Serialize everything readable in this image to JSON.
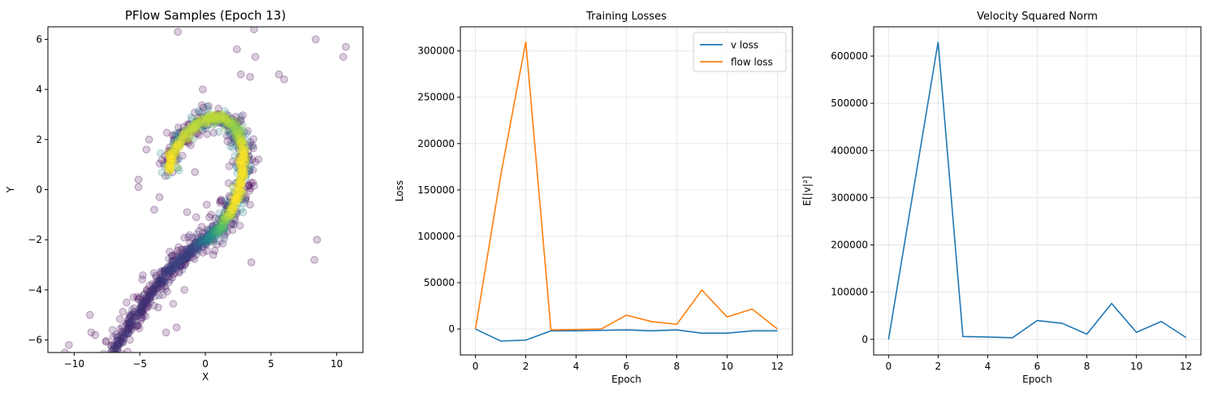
{
  "chart_data": [
    {
      "type": "scatter",
      "title": "PFlow Samples (Epoch 13)",
      "xlabel": "X",
      "ylabel": "Y",
      "xlim": [
        -12,
        12
      ],
      "ylim": [
        -6.5,
        6.5
      ],
      "xticks": [
        -10,
        -5,
        0,
        5,
        10
      ],
      "yticks": [
        -6,
        -4,
        -2,
        0,
        2,
        4,
        6
      ],
      "grid": false,
      "colormap": [
        "#440154",
        "#3b528b",
        "#21918c",
        "#5ec962",
        "#fde725"
      ],
      "point_alpha": 0.2,
      "curve_points": [
        {
          "x": -7.0,
          "y": -6.5,
          "c": 0.15
        },
        {
          "x": -6.2,
          "y": -5.8,
          "c": 0.15
        },
        {
          "x": -5.3,
          "y": -5.0,
          "c": 0.15
        },
        {
          "x": -4.4,
          "y": -4.3,
          "c": 0.15
        },
        {
          "x": -3.5,
          "y": -3.7,
          "c": 0.15
        },
        {
          "x": -2.6,
          "y": -3.1,
          "c": 0.2
        },
        {
          "x": -1.8,
          "y": -2.8,
          "c": 0.2
        },
        {
          "x": -1.0,
          "y": -2.4,
          "c": 0.2
        },
        {
          "x": -0.3,
          "y": -2.1,
          "c": 0.3
        },
        {
          "x": 0.5,
          "y": -1.8,
          "c": 0.5
        },
        {
          "x": 1.2,
          "y": -1.5,
          "c": 0.7
        },
        {
          "x": 1.8,
          "y": -1.0,
          "c": 0.9
        },
        {
          "x": 2.3,
          "y": -0.5,
          "c": 1.0
        },
        {
          "x": 2.6,
          "y": 0.1,
          "c": 1.0
        },
        {
          "x": 2.8,
          "y": 0.8,
          "c": 1.0
        },
        {
          "x": 2.9,
          "y": 1.4,
          "c": 1.0
        },
        {
          "x": 2.7,
          "y": 2.0,
          "c": 0.9
        },
        {
          "x": 2.3,
          "y": 2.5,
          "c": 0.8
        },
        {
          "x": 1.5,
          "y": 2.8,
          "c": 0.9
        },
        {
          "x": 0.6,
          "y": 2.9,
          "c": 0.9
        },
        {
          "x": -0.3,
          "y": 2.7,
          "c": 0.9
        },
        {
          "x": -1.2,
          "y": 2.4,
          "c": 0.9
        },
        {
          "x": -2.0,
          "y": 1.9,
          "c": 0.95
        },
        {
          "x": -2.6,
          "y": 1.3,
          "c": 1.0
        },
        {
          "x": -2.8,
          "y": 0.7,
          "c": 1.0
        }
      ],
      "outliers": [
        {
          "x": -2.1,
          "y": 6.3
        },
        {
          "x": 2.4,
          "y": 5.6
        },
        {
          "x": 3.7,
          "y": 6.4
        },
        {
          "x": 3.8,
          "y": 5.3
        },
        {
          "x": 8.4,
          "y": 6.0
        },
        {
          "x": 10.7,
          "y": 5.7
        },
        {
          "x": 10.5,
          "y": 5.3
        },
        {
          "x": 5.6,
          "y": 4.6
        },
        {
          "x": 6.0,
          "y": 4.4
        },
        {
          "x": 2.7,
          "y": 4.6
        },
        {
          "x": 3.4,
          "y": 4.5
        },
        {
          "x": -0.2,
          "y": 4.0
        },
        {
          "x": -4.3,
          "y": 2.0
        },
        {
          "x": -4.5,
          "y": 1.6
        },
        {
          "x": -5.1,
          "y": 0.4
        },
        {
          "x": -5.1,
          "y": 0.1
        },
        {
          "x": -3.9,
          "y": -0.8
        },
        {
          "x": -3.5,
          "y": -0.3
        },
        {
          "x": -2.5,
          "y": 0.7
        },
        {
          "x": -0.8,
          "y": 0.7
        },
        {
          "x": -0.7,
          "y": -1.1
        },
        {
          "x": 0.1,
          "y": -0.6
        },
        {
          "x": 0.3,
          "y": -1.1
        },
        {
          "x": 1.2,
          "y": -0.4
        },
        {
          "x": 3.4,
          "y": -0.6
        },
        {
          "x": 3.5,
          "y": -2.9
        },
        {
          "x": 8.5,
          "y": -2.0
        },
        {
          "x": 8.3,
          "y": -2.8
        },
        {
          "x": -6.0,
          "y": -4.5
        },
        {
          "x": -8.8,
          "y": -5.0
        },
        {
          "x": -8.4,
          "y": -5.8
        },
        {
          "x": -8.7,
          "y": -5.7
        },
        {
          "x": -10.4,
          "y": -6.2
        },
        {
          "x": -10.7,
          "y": -6.5
        },
        {
          "x": -2.2,
          "y": -5.5
        },
        {
          "x": -3.0,
          "y": -5.7
        },
        {
          "x": -1.6,
          "y": -4.0
        },
        {
          "x": -3.6,
          "y": -4.7
        },
        {
          "x": 0.6,
          "y": -2.6
        },
        {
          "x": -1.4,
          "y": -0.9
        }
      ]
    },
    {
      "type": "line",
      "title": "Training Losses",
      "xlabel": "Epoch",
      "ylabel": "Loss",
      "xlim": [
        -0.6,
        12.6
      ],
      "ylim": [
        -28000,
        326000
      ],
      "xticks": [
        0,
        2,
        4,
        6,
        8,
        10,
        12
      ],
      "yticks": [
        0,
        50000,
        100000,
        150000,
        200000,
        250000,
        300000
      ],
      "grid": true,
      "legend": "top-right",
      "x": [
        0,
        1,
        2,
        3,
        4,
        5,
        6,
        7,
        8,
        9,
        10,
        11,
        12
      ],
      "series": [
        {
          "name": "v loss",
          "color": "#1f77b4",
          "values": [
            0,
            -13000,
            -12000,
            -2000,
            -2000,
            -1500,
            -1000,
            -2000,
            -1000,
            -4500,
            -4500,
            -2000,
            -2000
          ]
        },
        {
          "name": "flow loss",
          "color": "#ff7f0e",
          "values": [
            0,
            165000,
            310000,
            -1000,
            -500,
            0,
            15000,
            8000,
            5000,
            42000,
            13000,
            21500,
            0
          ]
        }
      ]
    },
    {
      "type": "line",
      "title": "Velocity Squared Norm",
      "xlabel": "Epoch",
      "ylabel": "E[|v|²]",
      "xlim": [
        -0.6,
        12.6
      ],
      "ylim": [
        -33000,
        662000
      ],
      "xticks": [
        0,
        2,
        4,
        6,
        8,
        10,
        12
      ],
      "yticks": [
        0,
        100000,
        200000,
        300000,
        400000,
        500000,
        600000
      ],
      "grid": true,
      "x": [
        0,
        1,
        2,
        3,
        4,
        5,
        6,
        7,
        8,
        9,
        10,
        11,
        12
      ],
      "series": [
        {
          "color": "#1f77b4",
          "values": [
            0,
            315000,
            630000,
            6000,
            5000,
            3500,
            40000,
            34000,
            11000,
            76000,
            15000,
            38000,
            4000
          ]
        }
      ]
    }
  ]
}
